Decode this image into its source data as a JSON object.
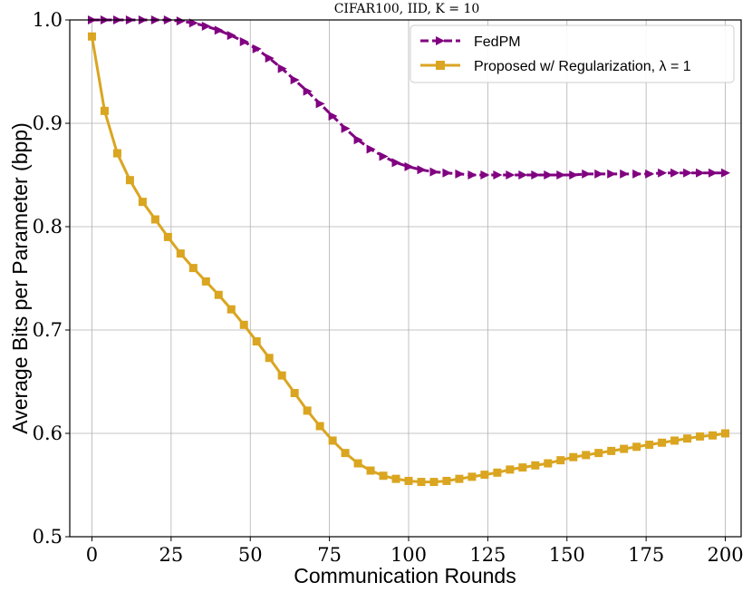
{
  "chart_data": {
    "type": "line",
    "title": "CIFAR100, IID, K = 10",
    "xlabel": "Communication Rounds",
    "ylabel": "Average Bits per Parameter (bpp)",
    "xlim": [
      -7,
      205
    ],
    "ylim": [
      0.5,
      1.0
    ],
    "xticks": [
      0,
      25,
      50,
      75,
      100,
      125,
      150,
      175,
      200
    ],
    "xtick_labels": [
      "0",
      "25",
      "50",
      "75",
      "100",
      "125",
      "150",
      "175",
      "200"
    ],
    "yticks": [
      0.5,
      0.6,
      0.7,
      0.8,
      0.9,
      1.0
    ],
    "ytick_labels": [
      "0.5",
      "0.6",
      "0.7",
      "0.8",
      "0.9",
      "1.0"
    ],
    "grid": true,
    "legend_position": "top-right",
    "x": [
      0,
      4,
      8,
      12,
      16,
      20,
      24,
      28,
      32,
      36,
      40,
      44,
      48,
      52,
      56,
      60,
      64,
      68,
      72,
      76,
      80,
      84,
      88,
      92,
      96,
      100,
      104,
      108,
      112,
      116,
      120,
      124,
      128,
      132,
      136,
      140,
      144,
      148,
      152,
      156,
      160,
      164,
      168,
      172,
      176,
      180,
      184,
      188,
      192,
      196,
      200
    ],
    "series": [
      {
        "name": "FedPM",
        "color": "#800080",
        "marker": "triangle-right",
        "linestyle": "dashed",
        "values": [
          1.0,
          1.0,
          1.0,
          1.0,
          1.0,
          1.0,
          1.0,
          0.999,
          0.997,
          0.994,
          0.99,
          0.985,
          0.979,
          0.972,
          0.963,
          0.953,
          0.942,
          0.931,
          0.919,
          0.907,
          0.895,
          0.884,
          0.875,
          0.868,
          0.862,
          0.858,
          0.855,
          0.853,
          0.852,
          0.851,
          0.85,
          0.85,
          0.85,
          0.85,
          0.85,
          0.85,
          0.85,
          0.85,
          0.85,
          0.851,
          0.851,
          0.851,
          0.851,
          0.851,
          0.851,
          0.852,
          0.852,
          0.852,
          0.852,
          0.852,
          0.852
        ]
      },
      {
        "name": "Proposed w/ Regularization, λ = 1",
        "color": "#DAA520",
        "marker": "square",
        "linestyle": "solid",
        "values": [
          0.984,
          0.912,
          0.871,
          0.845,
          0.824,
          0.807,
          0.79,
          0.774,
          0.76,
          0.747,
          0.734,
          0.72,
          0.705,
          0.689,
          0.673,
          0.656,
          0.639,
          0.622,
          0.607,
          0.593,
          0.581,
          0.571,
          0.564,
          0.559,
          0.556,
          0.554,
          0.553,
          0.553,
          0.554,
          0.556,
          0.558,
          0.56,
          0.562,
          0.565,
          0.567,
          0.569,
          0.571,
          0.574,
          0.577,
          0.579,
          0.581,
          0.583,
          0.585,
          0.587,
          0.589,
          0.591,
          0.593,
          0.595,
          0.597,
          0.598,
          0.6
        ]
      }
    ]
  }
}
